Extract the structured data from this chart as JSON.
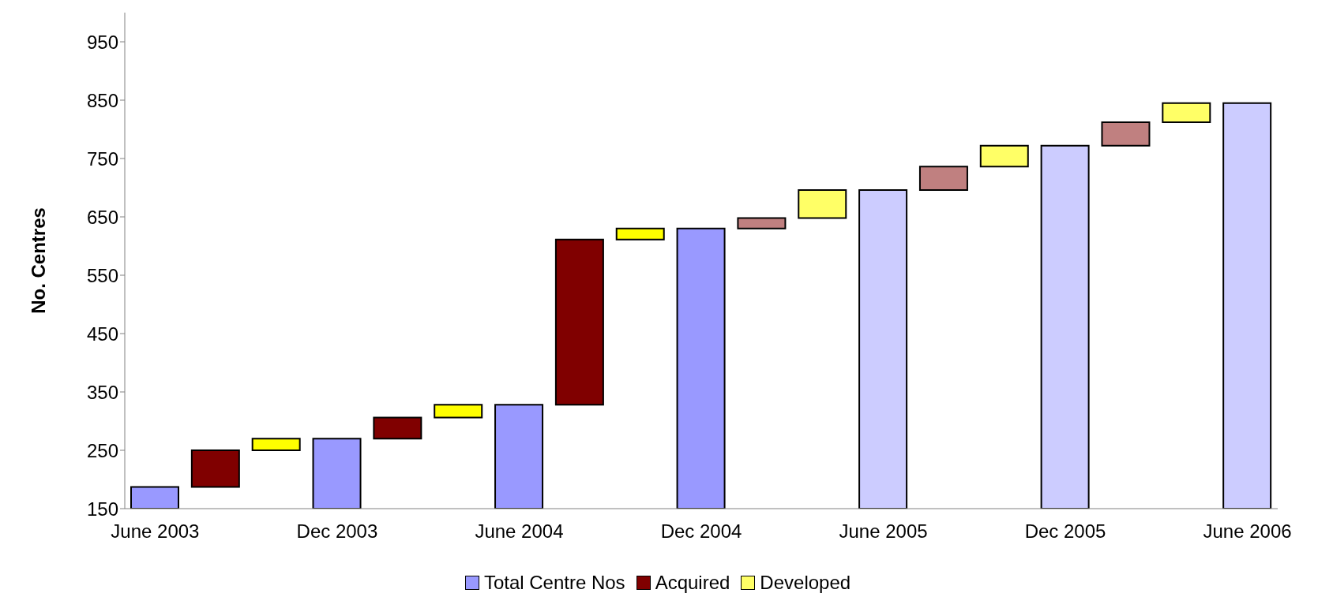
{
  "chart_data": {
    "type": "bar",
    "ylabel": "No. Centres",
    "categories": [
      "June 2003",
      null,
      null,
      "Dec 2003",
      null,
      null,
      "June 2004",
      null,
      null,
      "Dec 2004",
      null,
      null,
      "June 2005",
      null,
      null,
      "Dec 2005",
      null,
      null,
      "June 2006"
    ],
    "series": [
      {
        "name": "Total Centre Nos",
        "color": "#9999ff",
        "values": [
          187,
          null,
          null,
          270,
          null,
          null,
          328,
          null,
          null,
          630,
          null,
          null,
          696,
          null,
          null,
          772,
          null,
          null,
          845
        ],
        "colors": [
          "#9999ff",
          null,
          null,
          "#9999ff",
          null,
          null,
          "#9999ff",
          null,
          null,
          "#9999ff",
          null,
          null,
          "#ccccff",
          null,
          null,
          "#ccccff",
          null,
          null,
          "#ccccff"
        ]
      },
      {
        "name": "Acquired",
        "color": "#800000",
        "values": [
          null,
          63,
          null,
          null,
          36,
          null,
          null,
          283,
          null,
          null,
          18,
          null,
          null,
          40,
          null,
          null,
          40,
          null,
          null
        ],
        "base": [
          null,
          187,
          null,
          null,
          270,
          null,
          null,
          328,
          null,
          null,
          630,
          null,
          null,
          696,
          null,
          null,
          772,
          null,
          null
        ],
        "colors": [
          null,
          "#800000",
          null,
          null,
          "#800000",
          null,
          null,
          "#800000",
          null,
          null,
          "#c08080",
          null,
          null,
          "#c08080",
          null,
          null,
          "#c08080",
          null,
          null
        ]
      },
      {
        "name": "Developed",
        "color": "#ffff66",
        "values": [
          null,
          null,
          20,
          null,
          null,
          22,
          null,
          null,
          19,
          null,
          null,
          48,
          null,
          null,
          36,
          null,
          null,
          33,
          null
        ],
        "base": [
          null,
          null,
          250,
          null,
          null,
          306,
          null,
          null,
          611,
          null,
          null,
          648,
          null,
          null,
          736,
          null,
          null,
          812,
          null
        ],
        "colors": [
          null,
          null,
          "#ffff00",
          null,
          null,
          "#ffff00",
          null,
          null,
          "#ffff00",
          null,
          null,
          "#ffff66",
          null,
          null,
          "#ffff66",
          null,
          null,
          "#ffff66",
          null
        ]
      }
    ],
    "ylim": [
      150,
      1000
    ],
    "yticks": [
      150,
      250,
      350,
      450,
      550,
      650,
      750,
      850,
      950
    ],
    "grid": false,
    "legend": "bottom"
  }
}
